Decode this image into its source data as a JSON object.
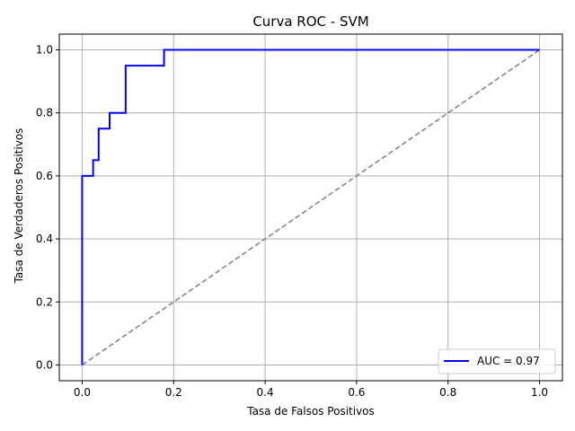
{
  "chart_data": {
    "type": "line",
    "title": "Curva ROC - SVM",
    "xlabel": "Tasa de Falsos Positivos",
    "ylabel": "Tasa de Verdaderos Positivos",
    "xlim": [
      -0.05,
      1.05
    ],
    "ylim": [
      -0.05,
      1.05
    ],
    "xticks": [
      0.0,
      0.2,
      0.4,
      0.6,
      0.8,
      1.0
    ],
    "yticks": [
      0.0,
      0.2,
      0.4,
      0.6,
      0.8,
      1.0
    ],
    "xtick_labels": [
      "0.0",
      "0.2",
      "0.4",
      "0.6",
      "0.8",
      "1.0"
    ],
    "ytick_labels": [
      "0.0",
      "0.2",
      "0.4",
      "0.6",
      "0.8",
      "1.0"
    ],
    "grid": true,
    "legend_position": "lower-right",
    "series": [
      {
        "name": "AUC = 0.97",
        "color": "#0000ff",
        "style": "solid",
        "x": [
          0.0,
          0.0,
          0.0,
          0.024,
          0.024,
          0.036,
          0.036,
          0.06,
          0.06,
          0.095,
          0.095,
          0.179,
          0.179,
          1.0
        ],
        "y": [
          0.0,
          0.6,
          0.6,
          0.6,
          0.65,
          0.65,
          0.75,
          0.75,
          0.8,
          0.8,
          0.95,
          0.95,
          1.0,
          1.0
        ]
      },
      {
        "name": "",
        "color": "#808080",
        "style": "dashed",
        "x": [
          0.0,
          1.0
        ],
        "y": [
          0.0,
          1.0
        ]
      }
    ]
  }
}
